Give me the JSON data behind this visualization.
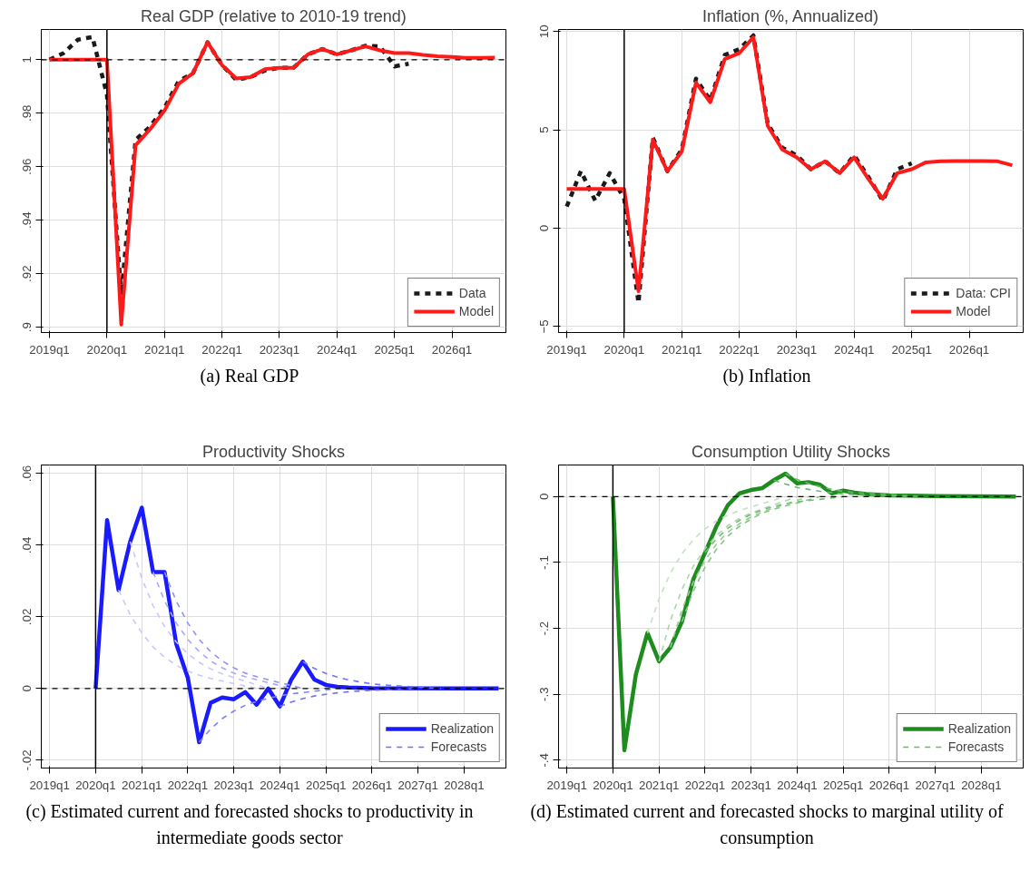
{
  "chart_data": [
    {
      "type": "line",
      "title": "Real GDP (relative to 2010-19 trend)",
      "annotations": [
        "(a) Real GDP"
      ],
      "xlim": [
        "2018-11-10",
        "2026-12-10"
      ],
      "ylim": [
        0.898,
        1.0113
      ],
      "xticks": [
        {
          "value": "2019-01",
          "label": "2019q1"
        },
        {
          "value": "2020-01",
          "label": "2020q1"
        },
        {
          "value": "2021-01",
          "label": "2021q1"
        },
        {
          "value": "2022-01",
          "label": "2022q1"
        },
        {
          "value": "2023-01",
          "label": "2023q1"
        },
        {
          "value": "2024-01",
          "label": "2024q1"
        },
        {
          "value": "2025-01",
          "label": "2025q1"
        },
        {
          "value": "2026-01",
          "label": "2026q1"
        }
      ],
      "yticks": [
        {
          "value": 0.9,
          "label": ".9"
        },
        {
          "value": 0.92,
          "label": ".92"
        },
        {
          "value": 0.94,
          "label": ".94"
        },
        {
          "value": 0.96,
          "label": ".96"
        },
        {
          "value": 0.98,
          "label": ".98"
        },
        1
      ],
      "grid": true,
      "legend": "bottom right",
      "ref_lines": [
        {
          "axis": "x",
          "value": "2020-01",
          "color": "#000000",
          "line_style": "solid"
        },
        {
          "axis": "y",
          "value": 1,
          "color": "#000000",
          "line_style": "dashed"
        }
      ],
      "series": [
        {
          "name": "Data",
          "color": "#1a1a1a",
          "line_style": "dashed",
          "x": [
            "2019-01",
            "2019-04",
            "2019-07",
            "2019-10",
            "2020-01",
            "2020-04",
            "2020-07",
            "2020-10",
            "2021-01",
            "2021-04",
            "2021-07",
            "2021-10",
            "2022-01",
            "2022-04",
            "2022-07",
            "2022-10",
            "2023-01",
            "2023-04",
            "2023-07",
            "2023-10",
            "2024-01",
            "2024-04",
            "2024-07",
            "2024-10",
            "2025-01",
            "2025-04"
          ],
          "values": [
            1.0,
            1.0025,
            1.0075,
            1.0085,
            0.987,
            0.912,
            0.97,
            0.975,
            0.982,
            0.992,
            0.995,
            1.0065,
            0.998,
            0.9925,
            0.9935,
            0.996,
            0.997,
            0.997,
            1.002,
            1.004,
            1.002,
            1.0035,
            1.0052,
            1.005,
            0.9975,
            0.9985
          ]
        },
        {
          "name": "Model",
          "color": "#ff1a1a",
          "line_style": "solid",
          "x": [
            "2019-01",
            "2019-04",
            "2019-07",
            "2019-10",
            "2020-01",
            "2020-04",
            "2020-07",
            "2020-10",
            "2021-01",
            "2021-04",
            "2021-07",
            "2021-10",
            "2022-01",
            "2022-04",
            "2022-07",
            "2022-10",
            "2023-01",
            "2023-04",
            "2023-07",
            "2023-10",
            "2024-01",
            "2024-04",
            "2024-07",
            "2024-10",
            "2025-01",
            "2025-04",
            "2025-07",
            "2025-10",
            "2026-01",
            "2026-04",
            "2026-07",
            "2026-10"
          ],
          "values": [
            1.0,
            1.0,
            1.0,
            1.0,
            1.0,
            0.901,
            0.968,
            0.974,
            0.981,
            0.991,
            0.995,
            1.0065,
            0.998,
            0.993,
            0.9935,
            0.9965,
            0.997,
            0.997,
            1.002,
            1.004,
            1.002,
            1.0035,
            1.005,
            1.0035,
            1.0025,
            1.0025,
            1.0018,
            1.0013,
            1.001,
            1.0007,
            1.0007,
            1.0008
          ]
        }
      ]
    },
    {
      "type": "line",
      "title": "Inflation (%, Annualized)",
      "annotations": [
        "(b) Inflation"
      ],
      "xlim": [
        "2018-11-10",
        "2026-12-10"
      ],
      "ylim": [
        -5.3,
        10.1
      ],
      "xticks": [
        {
          "value": "2019-01",
          "label": "2019q1"
        },
        {
          "value": "2020-01",
          "label": "2020q1"
        },
        {
          "value": "2021-01",
          "label": "2021q1"
        },
        {
          "value": "2022-01",
          "label": "2022q1"
        },
        {
          "value": "2023-01",
          "label": "2023q1"
        },
        {
          "value": "2024-01",
          "label": "2024q1"
        },
        {
          "value": "2025-01",
          "label": "2025q1"
        },
        {
          "value": "2026-01",
          "label": "2026q1"
        }
      ],
      "yticks": [
        -5,
        0,
        5,
        10
      ],
      "grid": true,
      "legend": "bottom right",
      "ref_lines": [
        {
          "axis": "x",
          "value": "2020-01",
          "color": "#000000",
          "line_style": "solid"
        }
      ],
      "series": [
        {
          "name": "Data: CPI",
          "color": "#1a1a1a",
          "line_style": "dashed",
          "x": [
            "2019-01",
            "2019-04",
            "2019-07",
            "2019-10",
            "2020-01",
            "2020-04",
            "2020-07",
            "2020-10",
            "2021-01",
            "2021-04",
            "2021-07",
            "2021-10",
            "2022-01",
            "2022-04",
            "2022-07",
            "2022-10",
            "2023-01",
            "2023-04",
            "2023-07",
            "2023-10",
            "2024-01",
            "2024-04",
            "2024-07",
            "2024-10",
            "2025-01"
          ],
          "values": [
            1.1,
            2.9,
            1.4,
            2.8,
            1.5,
            -3.8,
            4.6,
            2.9,
            4.0,
            7.6,
            6.5,
            8.8,
            9.1,
            9.8,
            5.3,
            4.1,
            3.7,
            3.0,
            3.4,
            2.8,
            3.7,
            2.6,
            1.4,
            3.0,
            3.3
          ]
        },
        {
          "name": "Model",
          "color": "#ff1a1a",
          "line_style": "solid",
          "x": [
            "2019-01",
            "2019-04",
            "2019-07",
            "2019-10",
            "2020-01",
            "2020-04",
            "2020-07",
            "2020-10",
            "2021-01",
            "2021-04",
            "2021-07",
            "2021-10",
            "2022-01",
            "2022-04",
            "2022-07",
            "2022-10",
            "2023-01",
            "2023-04",
            "2023-07",
            "2023-10",
            "2024-01",
            "2024-04",
            "2024-07",
            "2024-10",
            "2025-01",
            "2025-04",
            "2025-07",
            "2025-10",
            "2026-01",
            "2026-04",
            "2026-07",
            "2026-10"
          ],
          "values": [
            2,
            2,
            2,
            2,
            2,
            -3.2,
            4.5,
            2.9,
            3.9,
            7.4,
            6.4,
            8.6,
            8.9,
            9.7,
            5.2,
            4.0,
            3.6,
            3.0,
            3.4,
            2.8,
            3.6,
            2.5,
            1.5,
            2.8,
            3.0,
            3.35,
            3.4,
            3.42,
            3.42,
            3.42,
            3.4,
            3.2
          ]
        }
      ]
    },
    {
      "type": "line",
      "title": "Productivity Shocks",
      "annotations": [
        "(c) Estimated current and forecasted shocks to productivity in intermediate goods sector"
      ],
      "xlim": [
        "2018-10-27",
        "2028-11-28"
      ],
      "ylim": [
        -0.0222,
        0.0624
      ],
      "xticks": [
        {
          "value": "2019-01",
          "label": "2019q1"
        },
        {
          "value": "2020-01",
          "label": "2020q1"
        },
        {
          "value": "2021-01",
          "label": "2021q1"
        },
        {
          "value": "2022-01",
          "label": "2022q1"
        },
        {
          "value": "2023-01",
          "label": "2023q1"
        },
        {
          "value": "2024-01",
          "label": "2024q1"
        },
        {
          "value": "2025-01",
          "label": "2025q1"
        },
        {
          "value": "2026-01",
          "label": "2026q1"
        },
        {
          "value": "2027-01",
          "label": "2027q1"
        },
        {
          "value": "2028-01",
          "label": "2028q1"
        }
      ],
      "yticks": [
        {
          "value": -0.02,
          "label": "-.02"
        },
        0,
        {
          "value": 0.02,
          "label": ".02"
        },
        {
          "value": 0.04,
          "label": ".04"
        },
        {
          "value": 0.06,
          "label": ".06"
        }
      ],
      "grid": true,
      "legend": "bottom right",
      "ref_lines": [
        {
          "axis": "x",
          "value": "2020-01",
          "color": "#000000",
          "line_style": "solid"
        },
        {
          "axis": "y",
          "value": 0,
          "color": "#000000",
          "line_style": "dashed"
        }
      ],
      "series": [
        {
          "name": "Realization",
          "color": "#1a1aff",
          "line_style": "solid",
          "x": [
            "2020-01",
            "2020-04",
            "2020-07",
            "2020-10",
            "2021-01",
            "2021-04",
            "2021-07",
            "2021-10",
            "2022-01",
            "2022-04",
            "2022-07",
            "2022-10",
            "2023-01",
            "2023-04",
            "2023-07",
            "2023-10",
            "2024-01",
            "2024-04",
            "2024-07",
            "2024-10",
            "2025-01",
            "2025-04",
            "2025-07",
            "2026-01",
            "2028-10"
          ],
          "values": [
            0,
            0.047,
            0.0275,
            0.041,
            0.0505,
            0.0325,
            0.0325,
            0.0125,
            0.003,
            -0.015,
            -0.004,
            -0.0025,
            -0.003,
            -0.001,
            -0.0045,
            0.0,
            -0.005,
            0.0025,
            0.0075,
            0.0025,
            0.001,
            0.0005,
            0.0003,
            0.0001,
            0
          ]
        },
        {
          "name": "Forecasts",
          "color": "#7070ff",
          "line_style": "dashed",
          "x": [
            "2024-07",
            "2024-10",
            "2025-01",
            "2025-04",
            "2025-07",
            "2025-10",
            "2026-01",
            "2026-04",
            "2026-07",
            "2027-07"
          ],
          "values": [
            0.0075,
            0.0056,
            0.0042,
            0.0032,
            0.0024,
            0.0018,
            0.0013,
            0.001,
            0.0008,
            0
          ]
        },
        {
          "color": "#c8c8ff",
          "line_style": "dashed",
          "x": [
            "2020-07",
            "2020-10",
            "2021-01",
            "2021-04",
            "2021-07",
            "2021-10",
            "2022-01",
            "2022-04",
            "2022-07",
            "2023-07"
          ],
          "values": [
            0.0275,
            0.0206,
            0.0155,
            0.0116,
            0.0087,
            0.0065,
            0.0049,
            0.0037,
            0.0028,
            0
          ]
        },
        {
          "color": "#c8c8ff",
          "line_style": "dashed",
          "x": [
            "2020-10",
            "2021-01",
            "2021-04",
            "2021-07",
            "2021-10",
            "2022-01",
            "2022-04",
            "2022-07",
            "2022-10",
            "2023-10"
          ],
          "values": [
            0.041,
            0.0308,
            0.0231,
            0.0173,
            0.013,
            0.0097,
            0.0073,
            0.0055,
            0.0041,
            0
          ]
        },
        {
          "color": "#a8a8ff",
          "line_style": "dashed",
          "x": [
            "2021-04",
            "2021-07",
            "2021-10",
            "2022-01",
            "2022-04",
            "2022-07",
            "2022-10",
            "2023-01",
            "2023-04",
            "2024-04"
          ],
          "values": [
            0.0325,
            0.0244,
            0.0183,
            0.0137,
            0.0103,
            0.0077,
            0.0058,
            0.0043,
            0.0033,
            0
          ]
        },
        {
          "color": "#9090ff",
          "line_style": "dashed",
          "x": [
            "2021-07",
            "2021-10",
            "2022-01",
            "2022-04",
            "2022-07",
            "2022-10",
            "2023-01",
            "2023-04",
            "2023-07",
            "2024-07"
          ],
          "values": [
            0.0325,
            0.0244,
            0.0183,
            0.0137,
            0.0103,
            0.0077,
            0.0058,
            0.0043,
            0.0033,
            0
          ]
        },
        {
          "color": "#8080ff",
          "line_style": "dashed",
          "x": [
            "2022-04",
            "2022-07",
            "2022-10",
            "2023-01",
            "2023-04",
            "2023-07",
            "2023-10",
            "2024-01",
            "2024-04",
            "2025-04"
          ],
          "values": [
            -0.015,
            -0.0113,
            -0.0084,
            -0.0063,
            -0.0047,
            -0.0036,
            -0.0027,
            -0.002,
            -0.0015,
            0
          ]
        },
        {
          "color": "#7070ff",
          "line_style": "dashed",
          "x": [
            "2024-01",
            "2024-04",
            "2024-07",
            "2024-10",
            "2025-01",
            "2025-04",
            "2025-07",
            "2025-10",
            "2026-01",
            "2027-01"
          ],
          "values": [
            -0.005,
            -0.0038,
            -0.0028,
            -0.0021,
            -0.0016,
            -0.0012,
            -0.0009,
            -0.0007,
            -0.0005,
            0
          ]
        }
      ]
    },
    {
      "type": "line",
      "title": "Consumption Utility Shocks",
      "annotations": [
        "(d) Estimated current and forecasted shocks to marginal utility of consumption"
      ],
      "xlim": [
        "2018-10-27",
        "2028-11-28"
      ],
      "ylim": [
        -0.412,
        0.048
      ],
      "xticks": [
        {
          "value": "2019-01",
          "label": "2019q1"
        },
        {
          "value": "2020-01",
          "label": "2020q1"
        },
        {
          "value": "2021-01",
          "label": "2021q1"
        },
        {
          "value": "2022-01",
          "label": "2022q1"
        },
        {
          "value": "2023-01",
          "label": "2023q1"
        },
        {
          "value": "2024-01",
          "label": "2024q1"
        },
        {
          "value": "2025-01",
          "label": "2025q1"
        },
        {
          "value": "2026-01",
          "label": "2026q1"
        },
        {
          "value": "2027-01",
          "label": "2027q1"
        },
        {
          "value": "2028-01",
          "label": "2028q1"
        }
      ],
      "yticks": [
        {
          "value": -0.4,
          "label": "-.4"
        },
        {
          "value": -0.3,
          "label": "-.3"
        },
        {
          "value": -0.2,
          "label": "-.2"
        },
        {
          "value": -0.1,
          "label": "-.1"
        },
        0
      ],
      "grid": true,
      "legend": "bottom right",
      "ref_lines": [
        {
          "axis": "x",
          "value": "2020-01",
          "color": "#000000",
          "line_style": "solid"
        },
        {
          "axis": "y",
          "value": 0,
          "color": "#000000",
          "line_style": "dashed"
        }
      ],
      "series": [
        {
          "name": "Realization",
          "color": "#1e8c1e",
          "line_style": "solid",
          "x": [
            "2020-01",
            "2020-04",
            "2020-07",
            "2020-10",
            "2021-01",
            "2021-04",
            "2021-07",
            "2021-10",
            "2022-01",
            "2022-04",
            "2022-07",
            "2022-10",
            "2023-01",
            "2023-04",
            "2023-07",
            "2023-10",
            "2024-01",
            "2024-04",
            "2024-07",
            "2024-10",
            "2025-01",
            "2025-04",
            "2025-07",
            "2025-10",
            "2026-01",
            "2027-01",
            "2028-10"
          ],
          "values": [
            0,
            -0.385,
            -0.27,
            -0.207,
            -0.25,
            -0.229,
            -0.19,
            -0.125,
            -0.085,
            -0.045,
            -0.013,
            0.005,
            0.01,
            0.013,
            0.025,
            0.035,
            0.02,
            0.022,
            0.018,
            0.005,
            0.009,
            0.006,
            0.004,
            0.003,
            0.002,
            0.001,
            0
          ]
        },
        {
          "name": "Forecasts",
          "color": "#66bb66",
          "line_style": "dashed",
          "x": [
            "2023-10",
            "2024-01",
            "2024-04",
            "2024-07",
            "2024-10",
            "2025-01",
            "2025-04",
            "2025-07",
            "2025-10",
            "2026-10"
          ],
          "values": [
            0.035,
            0.026,
            0.02,
            0.015,
            0.011,
            0.008,
            0.006,
            0.005,
            0.004,
            0
          ]
        },
        {
          "color": "#c2e2c2",
          "line_style": "dashed",
          "x": [
            "2020-10",
            "2021-01",
            "2021-04",
            "2021-07",
            "2021-10",
            "2022-01",
            "2022-04",
            "2022-07",
            "2022-10",
            "2023-10"
          ],
          "values": [
            -0.207,
            -0.155,
            -0.116,
            -0.087,
            -0.065,
            -0.049,
            -0.037,
            -0.028,
            -0.021,
            0
          ]
        },
        {
          "color": "#a8d6a8",
          "line_style": "dashed",
          "x": [
            "2021-01",
            "2021-04",
            "2021-07",
            "2021-10",
            "2022-01",
            "2022-04",
            "2022-07",
            "2022-10",
            "2023-01",
            "2024-01"
          ],
          "values": [
            -0.25,
            -0.188,
            -0.141,
            -0.105,
            -0.079,
            -0.059,
            -0.044,
            -0.033,
            -0.025,
            0
          ]
        },
        {
          "color": "#95cd95",
          "line_style": "dashed",
          "x": [
            "2021-04",
            "2021-07",
            "2021-10",
            "2022-01",
            "2022-04",
            "2022-07",
            "2022-10",
            "2023-01",
            "2023-04",
            "2024-04"
          ],
          "values": [
            -0.229,
            -0.172,
            -0.129,
            -0.097,
            -0.072,
            -0.054,
            -0.041,
            -0.031,
            -0.023,
            0
          ]
        },
        {
          "color": "#85c585",
          "line_style": "dashed",
          "x": [
            "2021-07",
            "2021-10",
            "2022-01",
            "2022-04",
            "2022-07",
            "2022-10",
            "2023-01",
            "2023-04",
            "2023-07",
            "2024-07"
          ],
          "values": [
            -0.19,
            -0.143,
            -0.107,
            -0.08,
            -0.06,
            -0.045,
            -0.034,
            -0.025,
            -0.019,
            0
          ]
        },
        {
          "color": "#75bd75",
          "line_style": "dashed",
          "x": [
            "2022-01",
            "2022-04",
            "2022-07",
            "2022-10",
            "2023-01",
            "2023-04",
            "2023-07",
            "2023-10",
            "2024-01",
            "2025-01"
          ],
          "values": [
            -0.085,
            -0.064,
            -0.048,
            -0.036,
            -0.027,
            -0.02,
            -0.015,
            -0.011,
            -0.008,
            0
          ]
        },
        {
          "color": "#66bb66",
          "line_style": "dashed",
          "x": [
            "2023-07",
            "2023-10",
            "2024-01",
            "2024-04",
            "2024-07",
            "2024-10",
            "2025-01",
            "2025-04",
            "2025-07",
            "2026-07"
          ],
          "values": [
            0.025,
            0.019,
            0.014,
            0.011,
            0.008,
            0.006,
            0.004,
            0.003,
            0.002,
            0
          ]
        }
      ]
    }
  ]
}
